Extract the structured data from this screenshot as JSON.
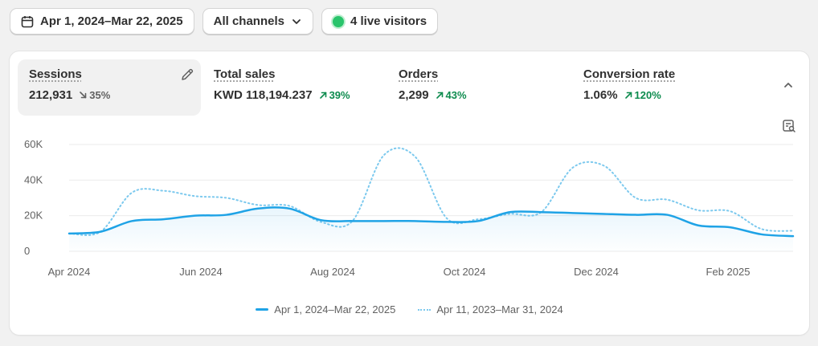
{
  "toolbar": {
    "date_range": "Apr 1, 2024–Mar 22, 2025",
    "channels": "All channels",
    "live_visitors": "4 live visitors"
  },
  "metrics": [
    {
      "label": "Sessions",
      "value": "212,931",
      "delta": "35%",
      "direction": "down"
    },
    {
      "label": "Total sales",
      "value": "KWD 118,194.237",
      "delta": "39%",
      "direction": "up"
    },
    {
      "label": "Orders",
      "value": "2,299",
      "delta": "43%",
      "direction": "up"
    },
    {
      "label": "Conversion rate",
      "value": "1.06%",
      "delta": "120%",
      "direction": "up"
    }
  ],
  "colors": {
    "primary": "#1fa3e6",
    "comparison": "#7cc9ee",
    "up": "#0c8b4d",
    "down": "#616161"
  },
  "chart_data": {
    "type": "line",
    "y_ticks": [
      "60K",
      "40K",
      "20K",
      "0"
    ],
    "x_ticks": [
      "Apr 2024",
      "Jun 2024",
      "Aug 2024",
      "Oct 2024",
      "Dec 2024",
      "Feb 2025"
    ],
    "ylim": [
      0,
      60000
    ],
    "grid": true,
    "legend_position": "bottom",
    "series": [
      {
        "name": "Apr 1, 2024–Mar 22, 2025",
        "style": "solid",
        "values": [
          10000,
          11000,
          17000,
          18000,
          20000,
          20500,
          24000,
          24000,
          17500,
          17000,
          17000,
          17000,
          16500,
          17000,
          22000,
          22000,
          21500,
          21000,
          20500,
          20500,
          14500,
          13500,
          9500,
          8500
        ]
      },
      {
        "name": "Apr 11, 2023–Mar 31, 2024",
        "style": "dotted",
        "values": [
          10000,
          11000,
          33000,
          34000,
          31000,
          30000,
          26000,
          25500,
          16500,
          17000,
          54000,
          53000,
          18500,
          18000,
          21000,
          22000,
          47000,
          48000,
          30000,
          29000,
          23000,
          22500,
          12500,
          11500
        ]
      }
    ]
  }
}
